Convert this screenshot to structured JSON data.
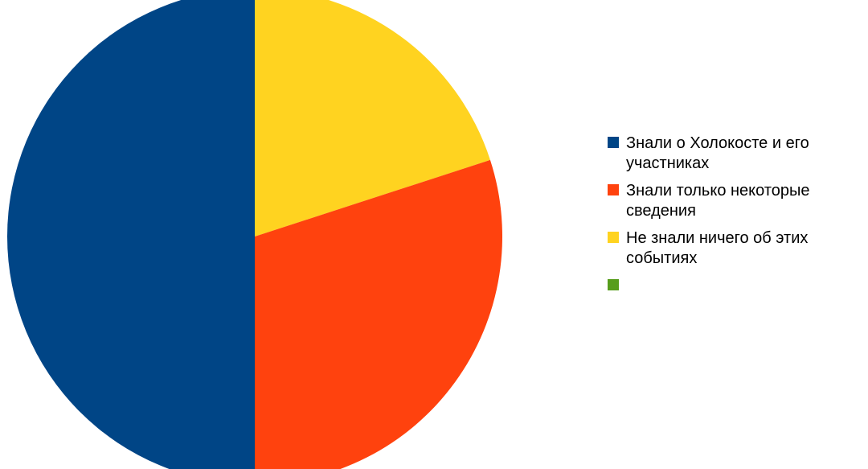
{
  "chart_data": {
    "type": "pie",
    "title": "",
    "start_angle": "12 o'clock",
    "direction": "clockwise",
    "legend_position": "right",
    "slices": [
      {
        "label": "Не знали ничего об этих\nсобытиях",
        "value": 20,
        "color": "#ffd320"
      },
      {
        "label": "Знали только некоторые\nсведения",
        "value": 30,
        "color": "#ff420e"
      },
      {
        "label": "Знали о Холокосте и его\nучастниках",
        "value": 50,
        "color": "#004586"
      }
    ],
    "legend": [
      {
        "label": "Знали о Холокосте и его\nучастниках",
        "color": "#004586"
      },
      {
        "label": "Знали только некоторые\nсведения",
        "color": "#ff420e"
      },
      {
        "label": "Не знали ничего об этих\nсобытиях",
        "color": "#ffd320"
      },
      {
        "label": "",
        "color": "#579d1c"
      }
    ]
  }
}
